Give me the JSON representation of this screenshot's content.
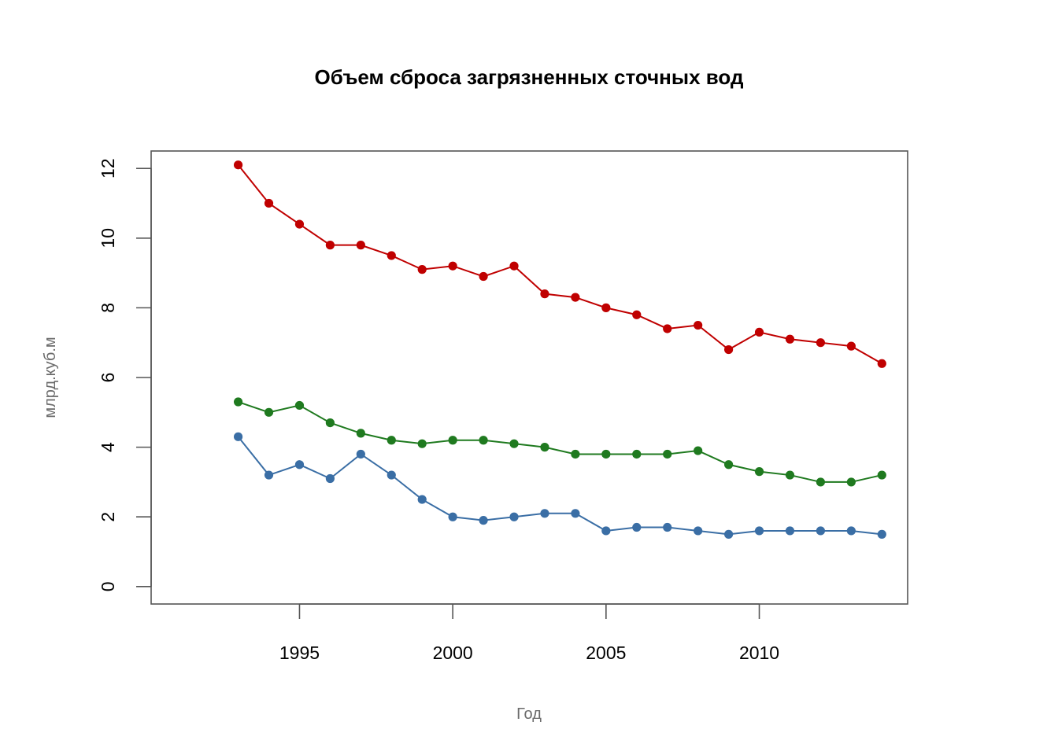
{
  "chart_data": {
    "type": "line",
    "title": "Объем сброса загрязненных сточных вод",
    "xlabel": "Год",
    "ylabel": "млрд.куб.м",
    "x": [
      1993,
      1994,
      1995,
      1996,
      1997,
      1998,
      1999,
      2000,
      2001,
      2002,
      2003,
      2004,
      2005,
      2006,
      2007,
      2008,
      2009,
      2010,
      2011,
      2012,
      2013,
      2014
    ],
    "xticks": [
      1995,
      2000,
      2005,
      2010
    ],
    "xtick_labels": [
      "1995",
      "2000",
      "2005",
      "2010"
    ],
    "yticks": [
      0,
      2,
      4,
      6,
      8,
      10,
      12
    ],
    "ytick_labels": [
      "0",
      "2",
      "4",
      "6",
      "8",
      "10",
      "12"
    ],
    "xlim": [
      1990.16,
      2014.84
    ],
    "ylim": [
      -0.5,
      12.5
    ],
    "grid": false,
    "series": [
      {
        "color": "#c00000",
        "values": [
          12.1,
          11.0,
          10.4,
          9.8,
          9.8,
          9.5,
          9.1,
          9.2,
          8.9,
          9.2,
          8.4,
          8.3,
          8.0,
          7.8,
          7.4,
          7.5,
          6.8,
          7.3,
          7.1,
          7.0,
          6.9,
          6.4
        ]
      },
      {
        "color": "#1f7a1f",
        "values": [
          5.3,
          5.0,
          5.2,
          4.7,
          4.4,
          4.2,
          4.1,
          4.2,
          4.2,
          4.1,
          4.0,
          3.8,
          3.8,
          3.8,
          3.8,
          3.9,
          3.5,
          3.3,
          3.2,
          3.0,
          3.0,
          3.2
        ]
      },
      {
        "color": "#3a6ea5",
        "values": [
          4.3,
          3.2,
          3.5,
          3.1,
          3.8,
          3.2,
          2.5,
          2.0,
          1.9,
          2.0,
          2.1,
          2.1,
          1.6,
          1.7,
          1.7,
          1.6,
          1.5,
          1.6,
          1.6,
          1.6,
          1.6,
          1.5
        ]
      }
    ]
  }
}
